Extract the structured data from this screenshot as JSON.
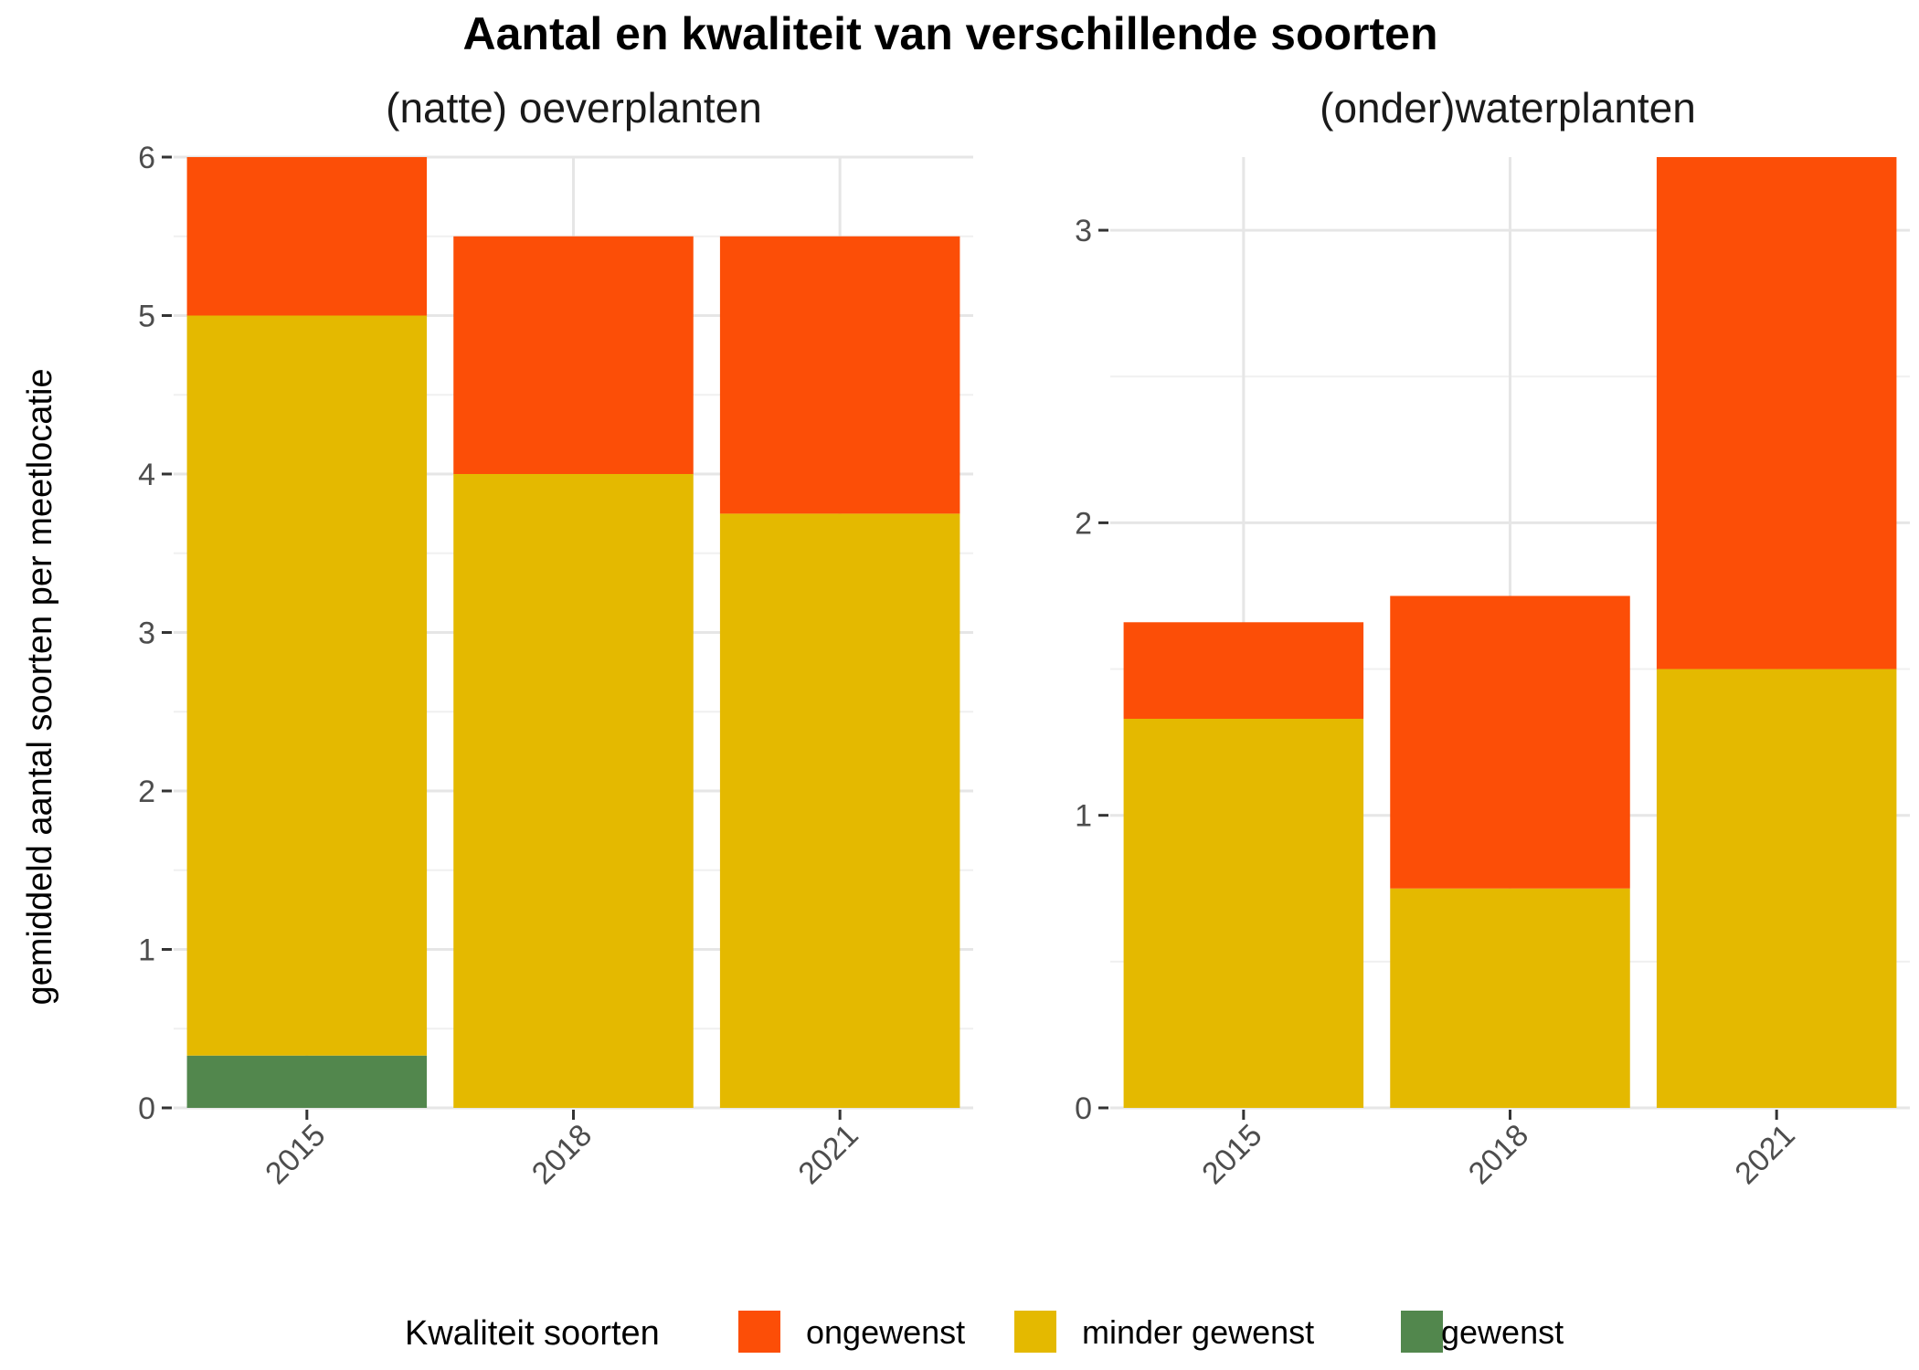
{
  "chart_data": {
    "type": "bar",
    "stacked": true,
    "title": "Aantal en kwaliteit van verschillende soorten",
    "ylabel": "gemiddeld aantal soorten per meetlocatie",
    "grid": true,
    "legend": {
      "title": "Kwaliteit soorten",
      "position": "bottom",
      "entries": [
        {
          "key": "ongewenst",
          "label": "ongewenst",
          "color": "#FC4E07"
        },
        {
          "key": "minder_gewenst",
          "label": "minder gewenst",
          "color": "#E4B900"
        },
        {
          "key": "gewenst",
          "label": "gewenst",
          "color": "#52874D"
        }
      ]
    },
    "stack_order": [
      "gewenst",
      "minder_gewenst",
      "ongewenst"
    ],
    "panels": [
      {
        "title": "(natte) oeverplanten",
        "categories": [
          "2015",
          "2018",
          "2021"
        ],
        "ylim": [
          0,
          6
        ],
        "yticks": [
          "0",
          "1",
          "2",
          "3",
          "4",
          "5",
          "6"
        ],
        "series": [
          {
            "name": "gewenst",
            "values": [
              0.33,
              0,
              0
            ]
          },
          {
            "name": "minder gewenst",
            "values": [
              4.67,
              4.0,
              3.75
            ]
          },
          {
            "name": "ongewenst",
            "values": [
              1.0,
              1.5,
              1.75
            ]
          }
        ]
      },
      {
        "title": "(onder)waterplanten",
        "categories": [
          "2015",
          "2018",
          "2021"
        ],
        "ylim": [
          0,
          3.25
        ],
        "yticks": [
          "0",
          "1",
          "2",
          "3"
        ],
        "series": [
          {
            "name": "gewenst",
            "values": [
              0,
              0,
              0
            ]
          },
          {
            "name": "minder gewenst",
            "values": [
              1.33,
              0.75,
              1.5
            ]
          },
          {
            "name": "ongewenst",
            "values": [
              0.33,
              1.0,
              1.75
            ]
          }
        ]
      }
    ]
  }
}
